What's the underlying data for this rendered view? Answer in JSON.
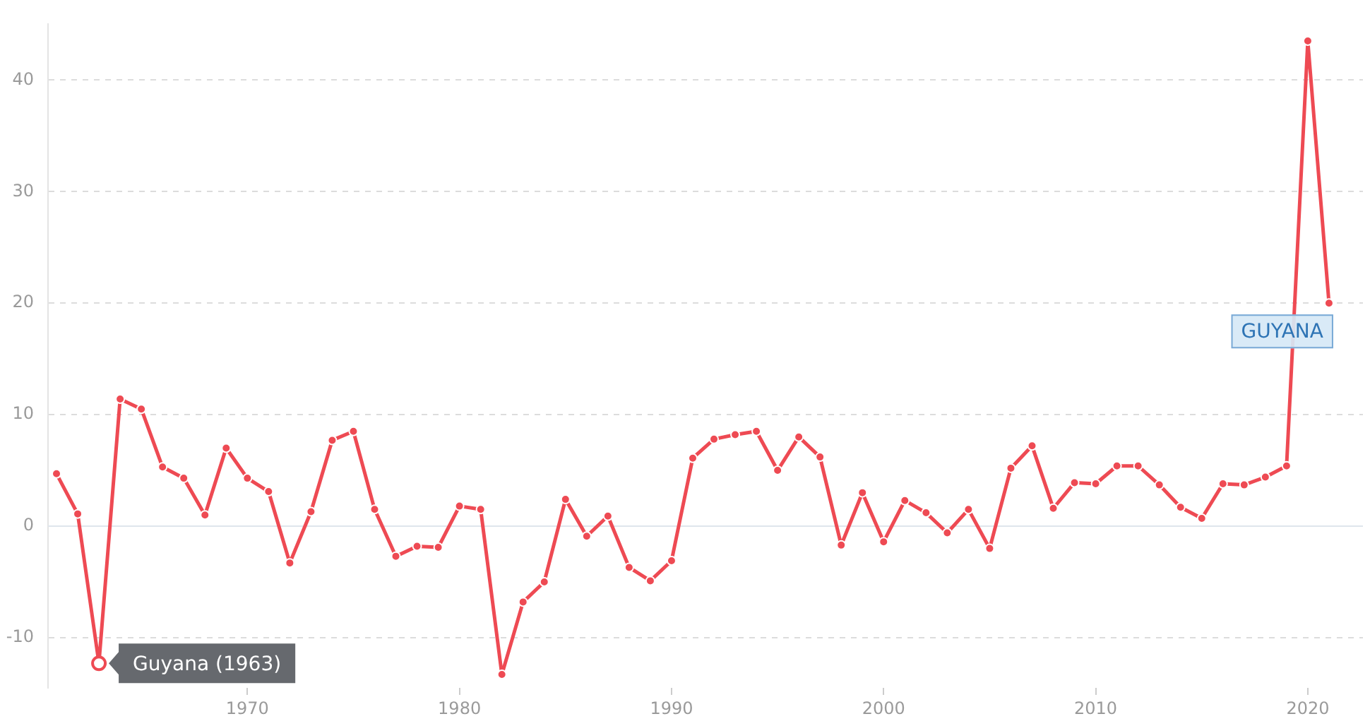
{
  "chart_data": {
    "type": "line",
    "x": [
      1961,
      1962,
      1963,
      1964,
      1965,
      1966,
      1967,
      1968,
      1969,
      1970,
      1971,
      1972,
      1973,
      1974,
      1975,
      1976,
      1977,
      1978,
      1979,
      1980,
      1981,
      1982,
      1983,
      1984,
      1985,
      1986,
      1987,
      1988,
      1989,
      1990,
      1991,
      1992,
      1993,
      1994,
      1995,
      1996,
      1997,
      1998,
      1999,
      2000,
      2001,
      2002,
      2003,
      2004,
      2005,
      2006,
      2007,
      2008,
      2009,
      2010,
      2011,
      2012,
      2013,
      2014,
      2015,
      2016,
      2017,
      2018,
      2019,
      2020,
      2021
    ],
    "series": [
      {
        "name": "GUYANA",
        "color": "#ee4a53",
        "values": [
          4.7,
          1.1,
          -12.3,
          11.4,
          10.5,
          5.3,
          4.3,
          1.0,
          7.0,
          4.3,
          3.1,
          -3.3,
          1.3,
          7.7,
          8.5,
          1.5,
          -2.7,
          -1.8,
          -1.9,
          1.8,
          1.5,
          -13.3,
          -6.8,
          -5.0,
          2.4,
          -0.9,
          0.9,
          -3.7,
          -4.9,
          -3.1,
          6.1,
          7.8,
          8.2,
          8.5,
          5.0,
          8.0,
          6.2,
          -1.7,
          3.0,
          -1.4,
          2.3,
          1.2,
          -0.6,
          1.5,
          -2.0,
          5.2,
          7.2,
          1.6,
          3.9,
          3.8,
          5.4,
          5.4,
          3.7,
          1.7,
          0.7,
          3.8,
          3.7,
          4.4,
          5.4,
          43.5,
          20.0
        ]
      }
    ],
    "xlim": [
      1960.6,
      2022.6
    ],
    "xticks": [
      1970,
      1980,
      1990,
      2000,
      2010,
      2020
    ],
    "ylim": [
      -14.5,
      45
    ],
    "yticks": [
      -10,
      0,
      10,
      20,
      30,
      40
    ],
    "grid": "y",
    "legend": false,
    "marker": "circle",
    "line_style": "solid",
    "ref_lines": [
      {
        "axis": "y",
        "value": 0,
        "color": "#dfe5ec"
      }
    ],
    "annotations": [
      {
        "text": "Guyana (1963)",
        "x": 1963,
        "y": -12.3
      }
    ]
  }
}
